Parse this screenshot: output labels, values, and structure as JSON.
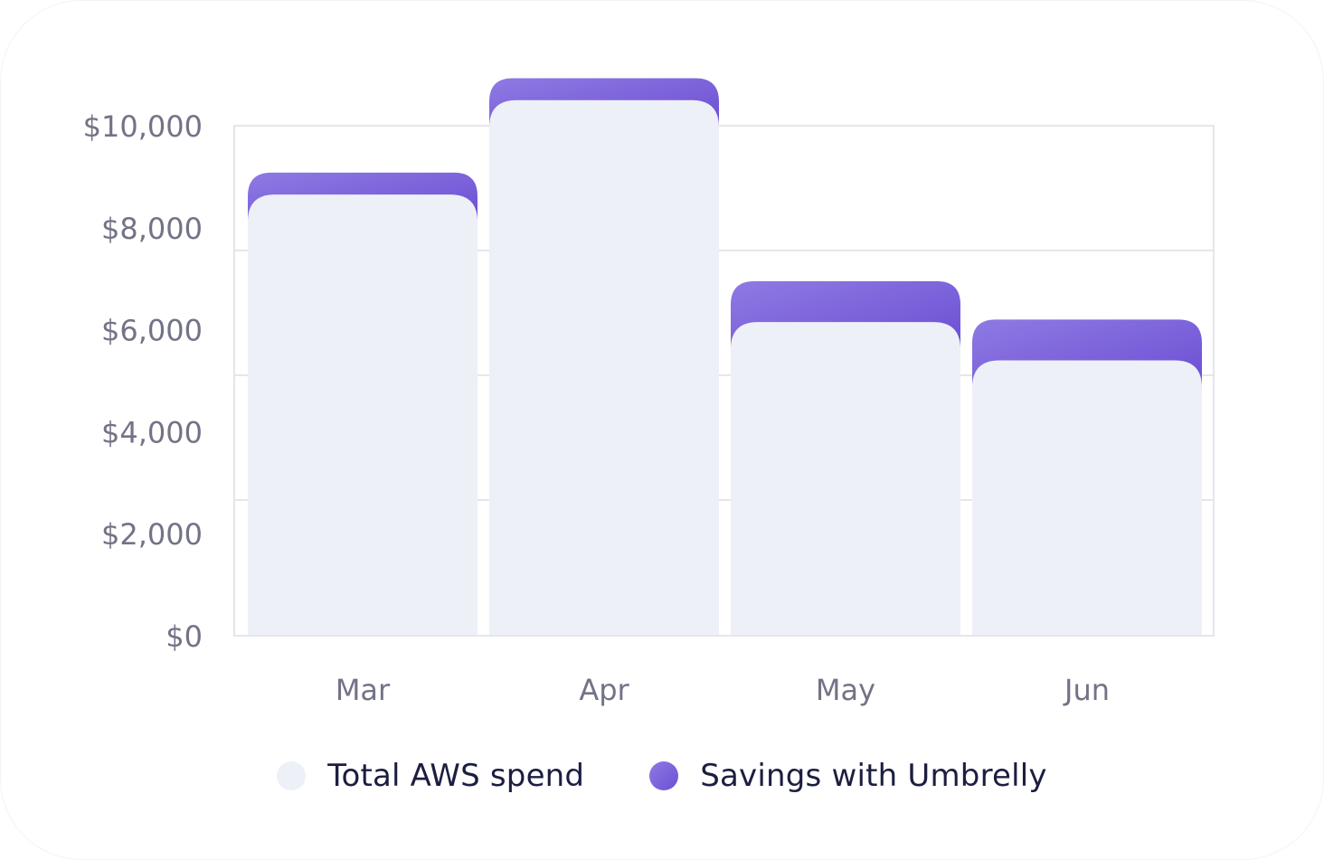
{
  "chart_data": {
    "type": "bar",
    "stacked": true,
    "categories": [
      "Mar",
      "Apr",
      "May",
      "Jun"
    ],
    "series": [
      {
        "name": "Total AWS spend",
        "values": [
          8650,
          10500,
          6150,
          5400
        ],
        "color": "#eef0f8"
      },
      {
        "name": "Savings with Umbrelly",
        "values": [
          430,
          430,
          800,
          800
        ],
        "color": "#7457d6"
      }
    ],
    "y_ticks": [
      "$0",
      "$2,000",
      "$4,000",
      "$6,000",
      "$8,000",
      "$10,000"
    ],
    "y_tick_values": [
      0,
      2000,
      4000,
      6000,
      8000,
      10000
    ],
    "ylim": [
      0,
      10000
    ],
    "grid": true,
    "legend_position": "bottom",
    "title": "",
    "xlabel": "",
    "ylabel": ""
  },
  "colors": {
    "gridline": "#e6e6ea",
    "tick_label": "#737387",
    "savings_gradient_start": "#8f7ae3",
    "savings_gradient_end": "#6c4fd3"
  }
}
